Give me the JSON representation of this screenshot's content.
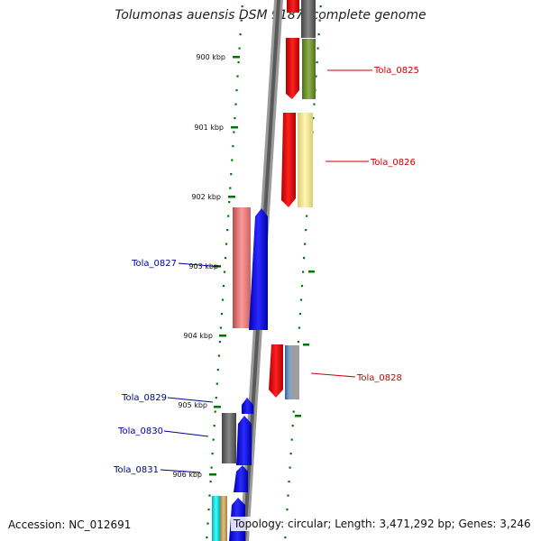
{
  "header": {
    "title": "Tolumonas auensis DSM 9187, complete genome"
  },
  "footer": {
    "accession": "Accession: NC_012691",
    "topology": "Topology: circular; Length: 3,471,292 bp; Genes: 3,246"
  },
  "scale": {
    "ticks": [
      {
        "label": "900 kbp",
        "side": "left"
      },
      {
        "label": "901 kbp",
        "side": "left"
      },
      {
        "label": "902 kbp",
        "side": "left"
      },
      {
        "label": "903 kbp",
        "side": "left"
      },
      {
        "label": "904 kbp",
        "side": "left"
      },
      {
        "label": "905 kbp",
        "side": "left"
      },
      {
        "label": "906 kbp",
        "side": "left"
      }
    ]
  },
  "genes": [
    {
      "label": "Tola_0825",
      "strand": "forward",
      "color": "#cc0000"
    },
    {
      "label": "Tola_0826",
      "strand": "forward",
      "color": "#cc0000"
    },
    {
      "label": "Tola_0827",
      "strand": "reverse",
      "color": "#000099"
    },
    {
      "label": "Tola_0828",
      "strand": "forward",
      "color": "#cc0000"
    },
    {
      "label": "Tola_0829",
      "strand": "reverse",
      "color": "#000099"
    },
    {
      "label": "Tola_0830",
      "strand": "reverse",
      "color": "#000099"
    },
    {
      "label": "Tola_0831",
      "strand": "reverse",
      "color": "#000099"
    }
  ],
  "colors": {
    "forward": "#ee0000",
    "reverse": "#0000ee",
    "backbone": "#888888",
    "ticks": "#007700"
  }
}
